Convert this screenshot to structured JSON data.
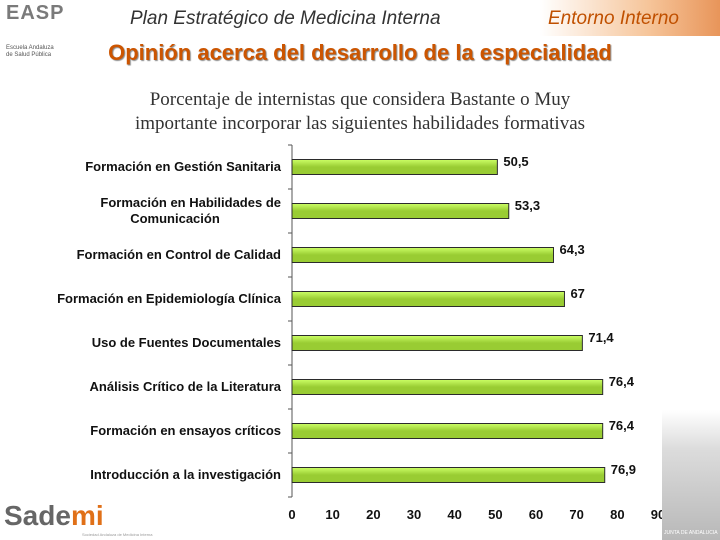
{
  "header": {
    "title": "Plan Estratégico de Medicina Interna",
    "context": "Entorno Interno",
    "main_title": "Opinión acerca del desarrollo de la especialidad",
    "subtitle_line1": "Porcentaje de internistas que considera Bastante o Muy",
    "subtitle_line2": "importante incorporar las siguientes habilidades formativas"
  },
  "logos": {
    "top": "EASP",
    "top_small_line1": "Escuela Andaluza",
    "top_small_line2": "de Salud Pública",
    "bottom_main": "Sade",
    "bottom_accent": "mi",
    "bottom_sub": "Sociedad Andaluza de Medicina Interna",
    "right": "JUNTA DE ANDALUCIA"
  },
  "colors": {
    "bar_fill": "#99cc33",
    "bar_highlight": "#ccff66",
    "bar_stroke": "#2b2b2b",
    "title_orange": "#cc5500"
  },
  "chart_data": {
    "type": "bar",
    "orientation": "horizontal",
    "categories": [
      [
        "Formación en Gestión Sanitaria"
      ],
      [
        "Formación en Habilidades de",
        "Comunicación"
      ],
      [
        "Formación en Control de Calidad"
      ],
      [
        "Formación en Epidemiología Clínica"
      ],
      [
        "Uso de Fuentes Documentales"
      ],
      [
        "Análisis Crítico de la Literatura"
      ],
      [
        "Formación en ensayos críticos"
      ],
      [
        "Introducción a la investigación"
      ]
    ],
    "values": [
      50.5,
      53.3,
      64.3,
      67,
      71.4,
      76.4,
      76.4,
      76.9
    ],
    "value_labels": [
      "50,5",
      "53,3",
      "64,3",
      "67",
      "71,4",
      "76,4",
      "76,4",
      "76,9"
    ],
    "xlim": [
      0,
      90
    ],
    "xticks": [
      0,
      10,
      20,
      30,
      40,
      50,
      60,
      70,
      80,
      90
    ],
    "grid": false
  }
}
